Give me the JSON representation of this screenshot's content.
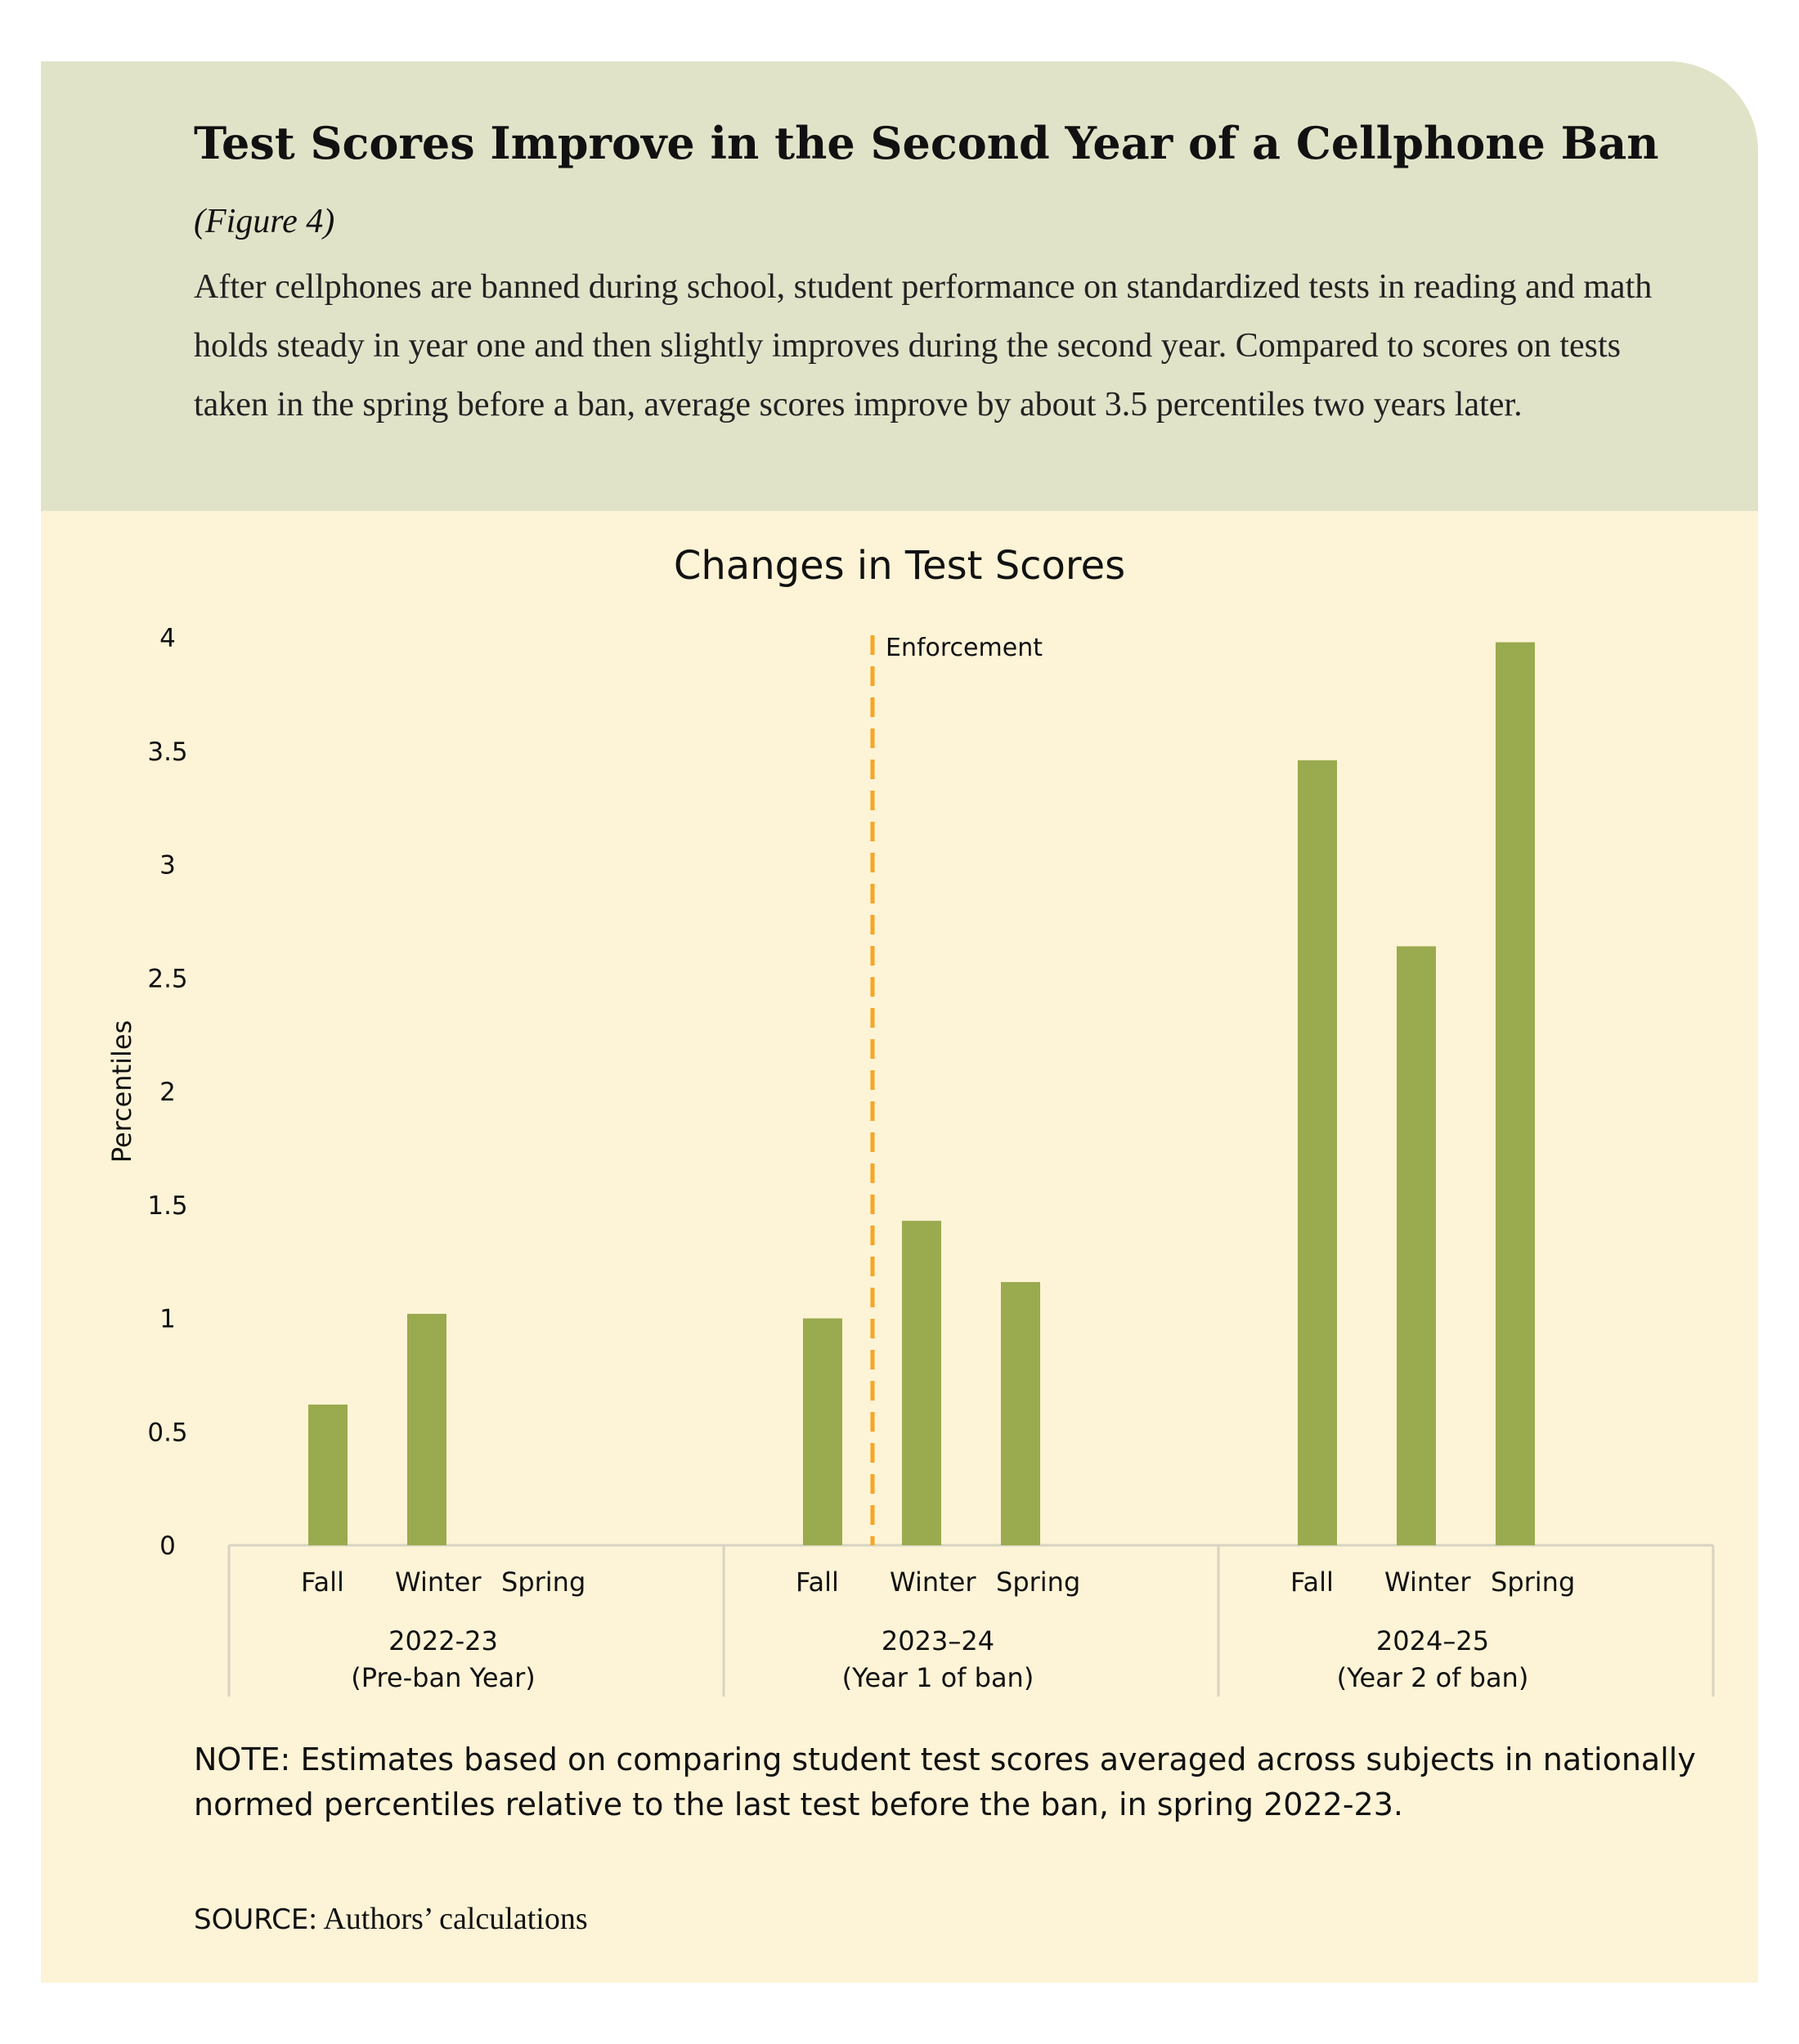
{
  "header": {
    "title": "Test Scores Improve in the Second Year of a Cellphone Ban",
    "figure_ref": "(Figure 4)",
    "description": "After cellphones are banned during school, student performance on standardized tests in reading and math holds steady in year one and then slightly improves during the second year. Compared to scores on tests taken in the spring before a ban, average scores improve by about 3.5 percentiles two years later."
  },
  "chart_data": {
    "type": "bar",
    "title": "Changes in Test Scores",
    "ylabel": "Percentiles",
    "xlabel": "",
    "ylim": [
      0,
      4
    ],
    "yticks": [
      0,
      0.5,
      1,
      1.5,
      2,
      2.5,
      3,
      3.5,
      4
    ],
    "ytick_labels": [
      "0",
      "0.5",
      "1",
      "1.5",
      "2",
      "2.5",
      "3",
      "3.5",
      "4"
    ],
    "grid": false,
    "groups": [
      {
        "label": "2022-23",
        "sublabel": "(Pre-ban Year)",
        "categories": [
          "Fall",
          "Winter",
          "Spring"
        ],
        "values": [
          0.62,
          1.02,
          null
        ]
      },
      {
        "label": "2023–24",
        "sublabel": "(Year 1 of ban)",
        "categories": [
          "Fall",
          "Winter",
          "Spring"
        ],
        "values": [
          1.0,
          1.43,
          1.16
        ]
      },
      {
        "label": "2024–25",
        "sublabel": "(Year 2 of ban)",
        "categories": [
          "Fall",
          "Winter",
          "Spring"
        ],
        "values": [
          3.46,
          2.64,
          3.98
        ]
      }
    ],
    "annotation": {
      "label": "Enforcement",
      "position": "between Fall and Winter of 2023–24",
      "color": "#f5a623"
    },
    "bar_color": "#9aaa4e"
  },
  "footer": {
    "note": "NOTE: Estimates based on comparing student test scores averaged across subjects in nationally normed percentiles relative to the last test before the ban, in spring 2022-23.",
    "source_label": "SOURCE",
    "source_text": ": Authors’ calculations"
  }
}
